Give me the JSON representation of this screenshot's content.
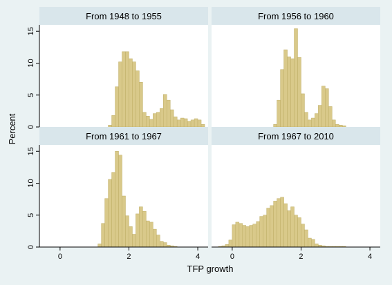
{
  "figure": {
    "ylabel": "Percent",
    "xlabel": "TFP growth",
    "colors": {
      "background": "#eaf2f3",
      "panel_bg": "#ffffff",
      "header_bg": "#d9e6eb",
      "bar_fill": "#d9c98a",
      "bar_stroke": "#bfae66",
      "axis": "#000000"
    }
  },
  "chart_data": [
    {
      "type": "bar",
      "title": "From 1948 to 1955",
      "xlim": [
        -0.6,
        4.3
      ],
      "ylim": [
        0,
        16
      ],
      "xticks": [
        0,
        2,
        4
      ],
      "yticks": [
        0,
        5,
        10,
        15
      ],
      "bin_width": 0.1,
      "bin_starts": [
        1.4,
        1.5,
        1.6,
        1.7,
        1.8,
        1.9,
        2.0,
        2.1,
        2.2,
        2.3,
        2.4,
        2.5,
        2.6,
        2.7,
        2.8,
        2.9,
        3.0,
        3.1,
        3.2,
        3.3,
        3.4,
        3.5,
        3.6,
        3.7,
        3.8,
        3.9,
        4.0,
        4.1
      ],
      "values": [
        0.3,
        1.8,
        6.3,
        10.2,
        11.8,
        11.8,
        10.7,
        10.2,
        8.8,
        7.0,
        2.3,
        1.7,
        1.2,
        2.1,
        2.3,
        2.9,
        5.1,
        4.2,
        2.7,
        1.6,
        1.1,
        1.4,
        1.3,
        0.9,
        1.1,
        1.3,
        1.1,
        0.4
      ]
    },
    {
      "type": "bar",
      "title": "From 1956 to 1960",
      "xlim": [
        -0.6,
        4.3
      ],
      "ylim": [
        0,
        16
      ],
      "xticks": [
        0,
        2,
        4
      ],
      "yticks": [
        0,
        5,
        10,
        15
      ],
      "bin_width": 0.1,
      "bin_starts": [
        1.2,
        1.3,
        1.4,
        1.5,
        1.6,
        1.7,
        1.8,
        1.9,
        2.0,
        2.1,
        2.2,
        2.3,
        2.4,
        2.5,
        2.6,
        2.7,
        2.8,
        2.9,
        3.0,
        3.1,
        3.2
      ],
      "values": [
        0.4,
        4.2,
        9.0,
        12.1,
        11.0,
        10.7,
        15.4,
        10.9,
        5.2,
        2.3,
        1.1,
        1.4,
        2.1,
        3.4,
        6.4,
        6.0,
        3.2,
        1.1,
        0.4,
        0.3,
        0.2
      ]
    },
    {
      "type": "bar",
      "title": "From 1961 to 1967",
      "xlim": [
        -0.6,
        4.3
      ],
      "ylim": [
        0,
        16
      ],
      "xticks": [
        0,
        2,
        4
      ],
      "yticks": [
        0,
        5,
        10,
        15
      ],
      "bin_width": 0.1,
      "bin_starts": [
        1.1,
        1.2,
        1.3,
        1.4,
        1.5,
        1.6,
        1.7,
        1.8,
        1.9,
        2.0,
        2.1,
        2.2,
        2.3,
        2.4,
        2.5,
        2.6,
        2.7,
        2.8,
        2.9,
        3.0,
        3.1,
        3.2,
        3.3
      ],
      "values": [
        0.5,
        3.7,
        7.6,
        10.6,
        11.7,
        15.0,
        14.4,
        8.0,
        4.9,
        3.2,
        2.0,
        5.2,
        6.3,
        5.6,
        4.1,
        3.9,
        2.8,
        1.9,
        0.9,
        0.7,
        0.3,
        0.2,
        0.1
      ]
    },
    {
      "type": "bar",
      "title": "From 1967 to 2010",
      "xlim": [
        -0.6,
        4.3
      ],
      "ylim": [
        0,
        16
      ],
      "xticks": [
        0,
        2,
        4
      ],
      "yticks": [
        0,
        5,
        10,
        15
      ],
      "bin_width": 0.1,
      "bin_starts": [
        -0.4,
        -0.3,
        -0.2,
        -0.1,
        0.0,
        0.1,
        0.2,
        0.3,
        0.4,
        0.5,
        0.6,
        0.7,
        0.8,
        0.9,
        1.0,
        1.1,
        1.2,
        1.3,
        1.4,
        1.5,
        1.6,
        1.7,
        1.8,
        1.9,
        2.0,
        2.1,
        2.2,
        2.3,
        2.4,
        2.5,
        2.6,
        2.7,
        2.8,
        2.9,
        3.0,
        3.1,
        3.2
      ],
      "values": [
        0.1,
        0.2,
        0.4,
        1.1,
        3.5,
        3.9,
        3.7,
        3.4,
        3.2,
        3.4,
        3.6,
        4.0,
        4.8,
        5.0,
        6.1,
        6.5,
        7.2,
        7.6,
        7.8,
        6.8,
        5.7,
        6.3,
        5.0,
        4.6,
        3.6,
        2.7,
        1.4,
        1.2,
        0.5,
        0.3,
        0.2,
        0.1,
        0.1,
        0.1,
        0.1,
        0.1,
        0.1
      ]
    }
  ]
}
